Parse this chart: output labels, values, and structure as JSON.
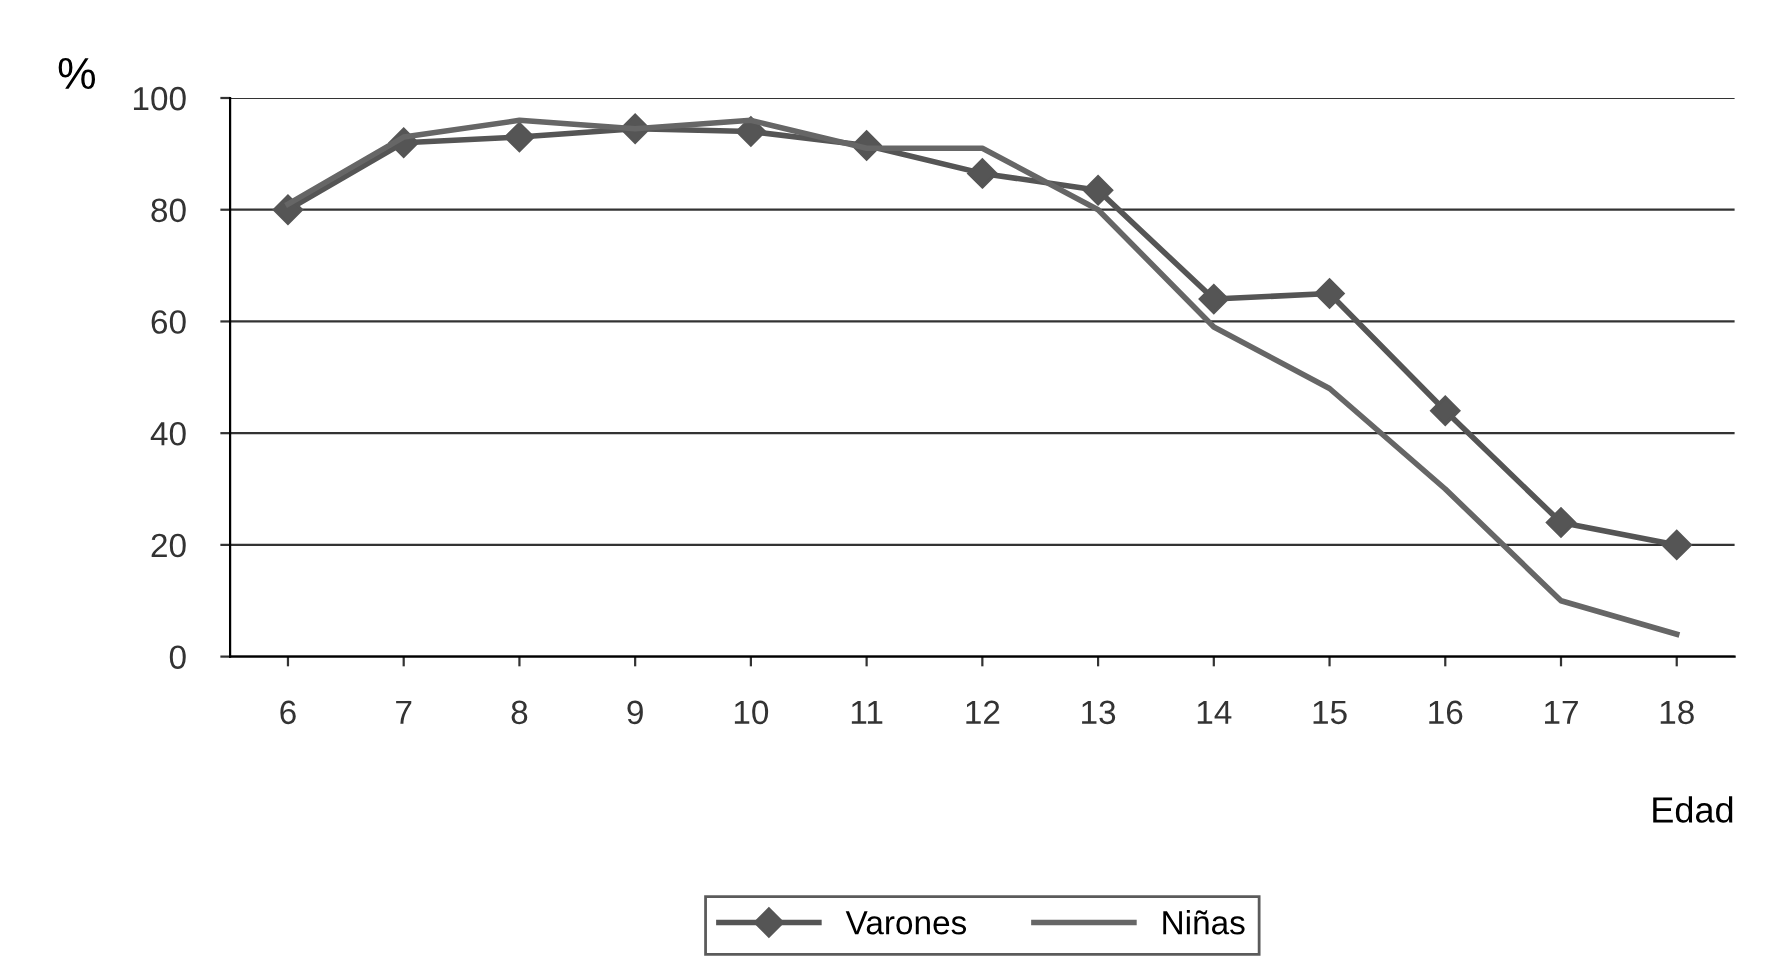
{
  "chart_data": {
    "type": "line",
    "xlabel": "Edad",
    "ylabel": "%",
    "categories": [
      "6",
      "7",
      "8",
      "9",
      "10",
      "11",
      "12",
      "13",
      "14",
      "15",
      "16",
      "17",
      "18"
    ],
    "series": [
      {
        "name": "Varones",
        "color": "#555555",
        "marker": "diamond",
        "values": [
          80,
          92,
          93,
          94.5,
          94,
          91.5,
          86.5,
          83.5,
          64,
          65,
          44,
          24,
          20
        ]
      },
      {
        "name": "Niñas",
        "color": "#666666",
        "marker": "none",
        "values": [
          81,
          93,
          96,
          94.5,
          96,
          91,
          91,
          80,
          59,
          48,
          30,
          10,
          4
        ]
      }
    ],
    "ylim": [
      0,
      100
    ],
    "yticks": [
      0,
      20,
      40,
      60,
      80,
      100
    ],
    "grid": "y",
    "legend": "bottom"
  }
}
